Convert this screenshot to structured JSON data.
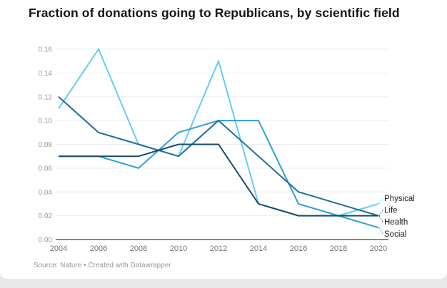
{
  "title": "Fraction of donations going to Republicans, by scientific field",
  "source": "Source: Nature • Created with Datawrapper",
  "chart_data": {
    "type": "line",
    "x": [
      2004,
      2006,
      2008,
      2010,
      2012,
      2014,
      2016,
      2018,
      2020
    ],
    "series": [
      {
        "name": "Physical",
        "color": "#66cdf2",
        "values": [
          0.11,
          0.16,
          0.08,
          0.07,
          0.15,
          0.03,
          0.02,
          0.02,
          0.03
        ]
      },
      {
        "name": "Social",
        "color": "#2da0d4",
        "values": [
          0.07,
          0.07,
          0.06,
          0.09,
          0.1,
          0.1,
          0.03,
          0.02,
          0.01
        ]
      },
      {
        "name": "Life",
        "color": "#1f6e9c",
        "values": [
          0.12,
          0.09,
          0.08,
          0.07,
          0.1,
          0.07,
          0.04,
          0.03,
          0.02
        ]
      },
      {
        "name": "Health",
        "color": "#1a4a6b",
        "values": [
          0.07,
          0.07,
          0.07,
          0.08,
          0.08,
          0.03,
          0.02,
          0.02,
          0.02
        ]
      }
    ],
    "ylim": [
      0.0,
      0.16
    ],
    "ytick_step": 0.02,
    "ytick_labels": [
      "0.00",
      "0.02",
      "0.04",
      "0.06",
      "0.08",
      "0.10",
      "0.12",
      "0.14",
      "0.16"
    ],
    "grid": true,
    "legend_position": "right-edge-labels",
    "legend_label_order": [
      "Physical",
      "Life",
      "Health",
      "Social"
    ],
    "axis_colors": {
      "gridline": "#ededed",
      "zeroline": "#8a8a8a",
      "ytick_text": "#9a9a9a",
      "xtick_text": "#757575",
      "legend_text": "#1c1c1c"
    }
  }
}
